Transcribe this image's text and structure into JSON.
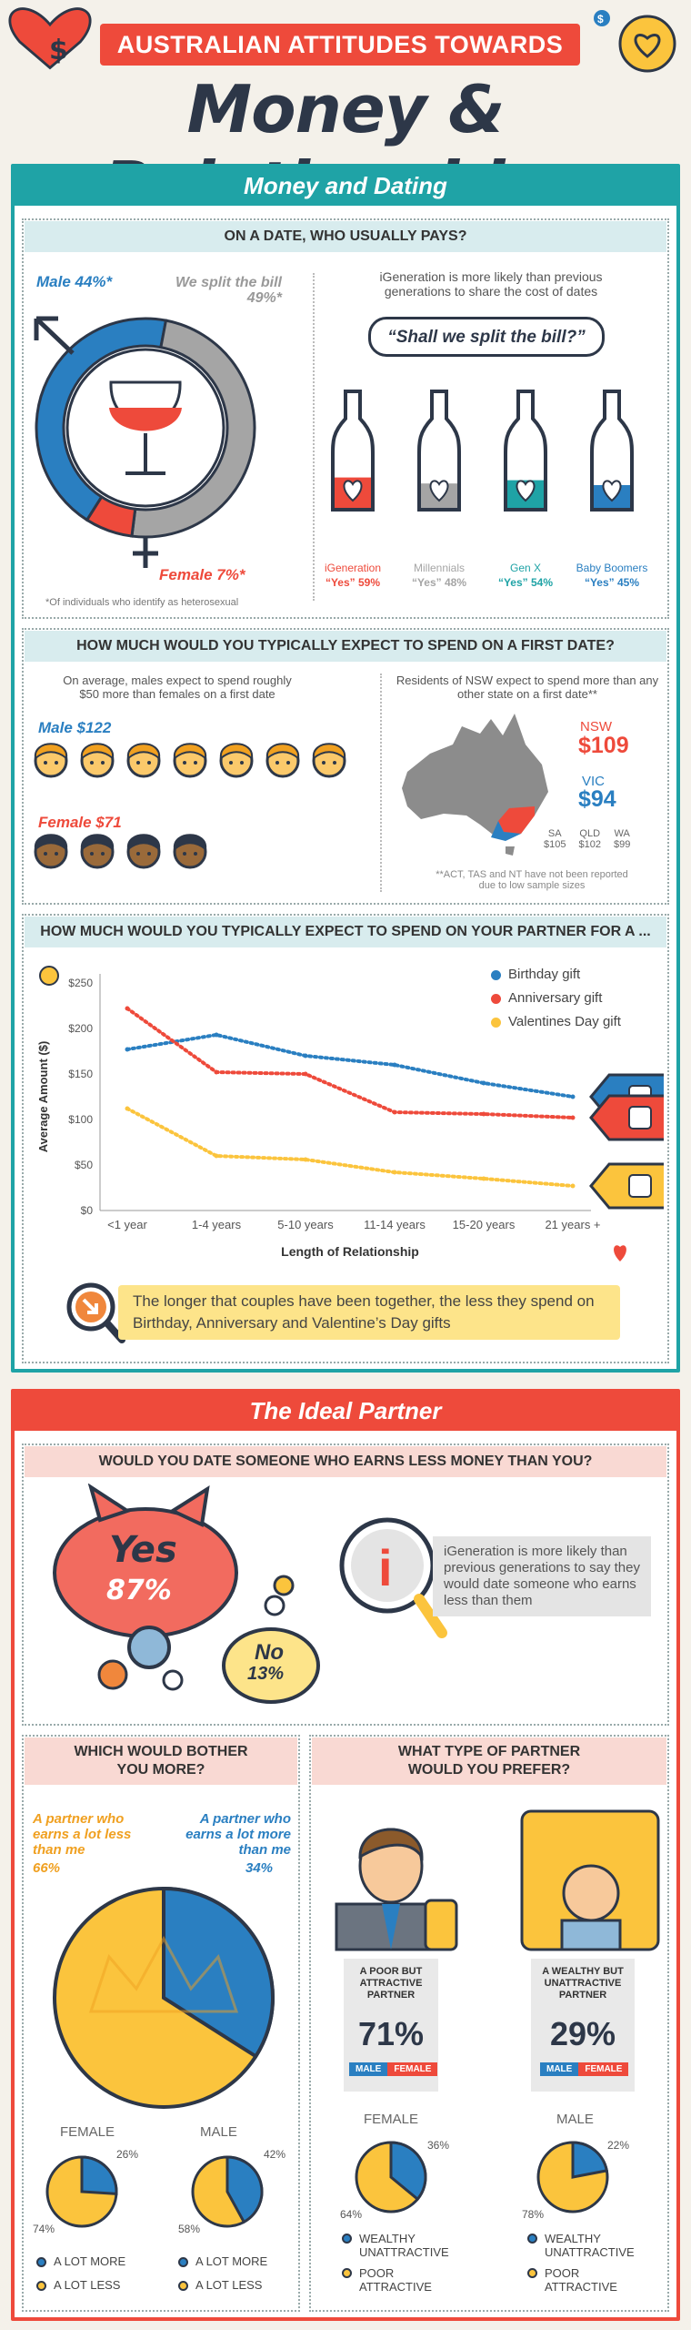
{
  "header": {
    "banner": "AUSTRALIAN ATTITUDES TOWARDS",
    "title": "Money & Relationships",
    "badge_symbol": "$"
  },
  "colors": {
    "teal": "#1fa3a6",
    "red": "#ee4a3b",
    "blue": "#2a7fc1",
    "gray": "#a5a5a5",
    "yellow": "#fbc43d",
    "dark": "#2d3748"
  },
  "dating": {
    "section_title": "Money and Dating",
    "who_pays": {
      "question": "ON A DATE, WHO USUALLY PAYS?",
      "male": "Male 44%*",
      "split": "We split the bill 49%*",
      "female": "Female 7%*",
      "ring": [
        {
          "label": "Male",
          "value": 44,
          "color": "#2a7fc1"
        },
        {
          "label": "Split",
          "value": 49,
          "color": "#a5a5a5"
        },
        {
          "label": "Female",
          "value": 7,
          "color": "#ee4a3b"
        }
      ],
      "footnote": "*Of individuals who identify as heterosexual",
      "intro": "iGeneration is more likely than previous generations to share the cost of dates",
      "quote": "“Shall we split the bill?”",
      "bottles": [
        {
          "gen": "iGeneration",
          "yes": "“Yes” 59%",
          "value": 59,
          "color": "#ee4a3b"
        },
        {
          "gen": "Millennials",
          "yes": "“Yes” 48%",
          "value": 48,
          "color": "#a5a5a5"
        },
        {
          "gen": "Gen X",
          "yes": "“Yes” 54%",
          "value": 54,
          "color": "#1fa3a6"
        },
        {
          "gen": "Baby Boomers",
          "yes": "“Yes” 45%",
          "value": 45,
          "color": "#2a7fc1"
        }
      ]
    },
    "first_date": {
      "question": "HOW MUCH WOULD YOU TYPICALLY EXPECT TO SPEND ON A FIRST DATE?",
      "left_text": "On average, males expect to spend roughly $50 more than females on a first date",
      "male": "Male $122",
      "female": "Female $71",
      "male_faces": 7,
      "female_faces": 4,
      "right_text": "Residents of NSW expect to spend more than any other state on a first date**",
      "nsw_label": "NSW",
      "nsw_value": "$109",
      "vic_label": "VIC",
      "vic_value": "$94",
      "states": [
        {
          "name": "SA",
          "value": "$105"
        },
        {
          "name": "QLD",
          "value": "$102"
        },
        {
          "name": "WA",
          "value": "$99"
        }
      ],
      "footnote": "**ACT, TAS and NT have not been reported due to low sample sizes"
    },
    "partner_spend": {
      "question": "HOW MUCH WOULD YOU TYPICALLY EXPECT TO SPEND ON YOUR PARTNER FOR A ...",
      "callout": "The longer that couples have been together, the less they spend on Birthday, Anniversary and Valentine’s Day gifts"
    }
  },
  "chart_data": {
    "type": "line",
    "categories": [
      "<1 year",
      "1-4 years",
      "5-10 years",
      "11-14 years",
      "15-20 years",
      "21 years +"
    ],
    "series": [
      {
        "name": "Birthday gift",
        "color": "#2a7fc1",
        "values": [
          177,
          193,
          170,
          160,
          140,
          125
        ]
      },
      {
        "name": "Anniversary gift",
        "color": "#ee4a3b",
        "values": [
          222,
          152,
          150,
          108,
          106,
          102
        ]
      },
      {
        "name": "Valentines Day gift",
        "color": "#fbc43d",
        "values": [
          112,
          60,
          56,
          42,
          35,
          27
        ]
      }
    ],
    "y_ticks": [
      "$0",
      "$50",
      "$100",
      "$150",
      "$200",
      "$250"
    ],
    "ylim": [
      0,
      250
    ],
    "xlabel": "Length of Relationship",
    "ylabel": "Average Amount ($)",
    "legend_position": "top-right"
  },
  "ideal": {
    "section_title": "The Ideal Partner",
    "earn_less": {
      "question": "WOULD YOU DATE SOMEONE WHO EARNS LESS MONEY THAN YOU?",
      "yes": "Yes",
      "yes_pct": "87%",
      "no": "No",
      "no_pct": "13%",
      "info": "iGeneration is more likely than previous generations to say they would date someone who earns less than them",
      "info_icon": "i"
    },
    "bother": {
      "question": "WHICH WOULD BOTHER YOU MORE?",
      "less_label": "A partner who earns a lot less than me",
      "less_pct": "66%",
      "more_label": "A partner who earns a lot more than me",
      "more_pct": "34%",
      "female_title": "FEMALE",
      "female_more": "26%",
      "female_less": "74%",
      "female_more_val": 26,
      "male_title": "MALE",
      "male_more": "42%",
      "male_less": "58%",
      "male_more_val": 42,
      "legend_more": "A LOT MORE",
      "legend_less": "A LOT LESS"
    },
    "prefer": {
      "question": "WHAT TYPE OF PARTNER WOULD YOU PREFER?",
      "poor_label": "A POOR BUT ATTRACTIVE PARTNER",
      "poor_pct": "71%",
      "wealthy_label": "A WEALTHY BUT UNATTRACTIVE PARTNER",
      "wealthy_pct": "29%",
      "male_tag": "MALE",
      "female_tag": "FEMALE",
      "female_title": "FEMALE",
      "female_wealthy": "36%",
      "female_poor": "64%",
      "female_wealthy_val": 36,
      "male_title": "MALE",
      "male_wealthy": "22%",
      "male_poor": "78%",
      "male_wealthy_val": 22,
      "legend_wealthy": "WEALTHY UNATTRACTIVE",
      "legend_poor": "POOR ATTRACTIVE"
    }
  }
}
